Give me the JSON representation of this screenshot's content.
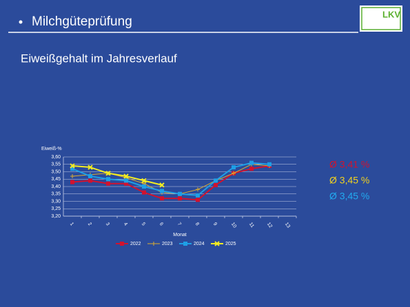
{
  "header": {
    "title": "Milchgüteprüfung",
    "logo": "LKV"
  },
  "chart_data": {
    "type": "line",
    "title": "Eiweißgehalt im Jahresverlauf",
    "y_label": "Eiweiß-%",
    "x_label": "Monat",
    "categories": [
      "1",
      "2",
      "3",
      "4",
      "5",
      "6",
      "7",
      "8",
      "9",
      "10",
      "11",
      "12",
      "13"
    ],
    "series": [
      {
        "name": "2022",
        "color": "#d2122e",
        "marker": "square",
        "values": [
          3.43,
          3.44,
          3.42,
          3.42,
          3.36,
          3.32,
          3.32,
          3.31,
          3.41,
          3.49,
          3.52,
          3.54,
          null
        ]
      },
      {
        "name": "2023",
        "color": "#dcae30",
        "marker": "plus",
        "values": [
          3.47,
          3.48,
          3.49,
          3.46,
          3.42,
          3.36,
          3.35,
          3.38,
          3.44,
          3.49,
          3.55,
          3.54,
          null
        ]
      },
      {
        "name": "2024",
        "color": "#1e9fe6",
        "marker": "square",
        "values": [
          3.52,
          3.47,
          3.45,
          3.44,
          3.4,
          3.37,
          3.35,
          3.34,
          3.44,
          3.53,
          3.56,
          3.55,
          null
        ]
      },
      {
        "name": "2025",
        "color": "#f2ec22",
        "marker": "x",
        "values": [
          3.54,
          3.53,
          3.49,
          3.47,
          3.44,
          3.41,
          null,
          null,
          null,
          null,
          null,
          null,
          null
        ]
      }
    ],
    "ylim": [
      3.2,
      3.6
    ],
    "yticks": [
      {
        "value": 3.2,
        "label": "3,20"
      },
      {
        "value": 3.25,
        "label": "3,25"
      },
      {
        "value": 3.3,
        "label": "3,30"
      },
      {
        "value": 3.35,
        "label": "3,35"
      },
      {
        "value": 3.4,
        "label": "3,40"
      },
      {
        "value": 3.45,
        "label": "3,45"
      },
      {
        "value": 3.5,
        "label": "3,50"
      },
      {
        "value": 3.55,
        "label": "3,55"
      },
      {
        "value": 3.6,
        "label": "3,60"
      }
    ],
    "grid": true,
    "legend": "bottom",
    "annotations": [
      {
        "text": "Ø 3,41 %",
        "color": "#d2122e"
      },
      {
        "text": "Ø 3,45 %",
        "color": "#f2d21e"
      },
      {
        "text": "Ø 3,45 %",
        "color": "#22aaf0"
      }
    ]
  }
}
